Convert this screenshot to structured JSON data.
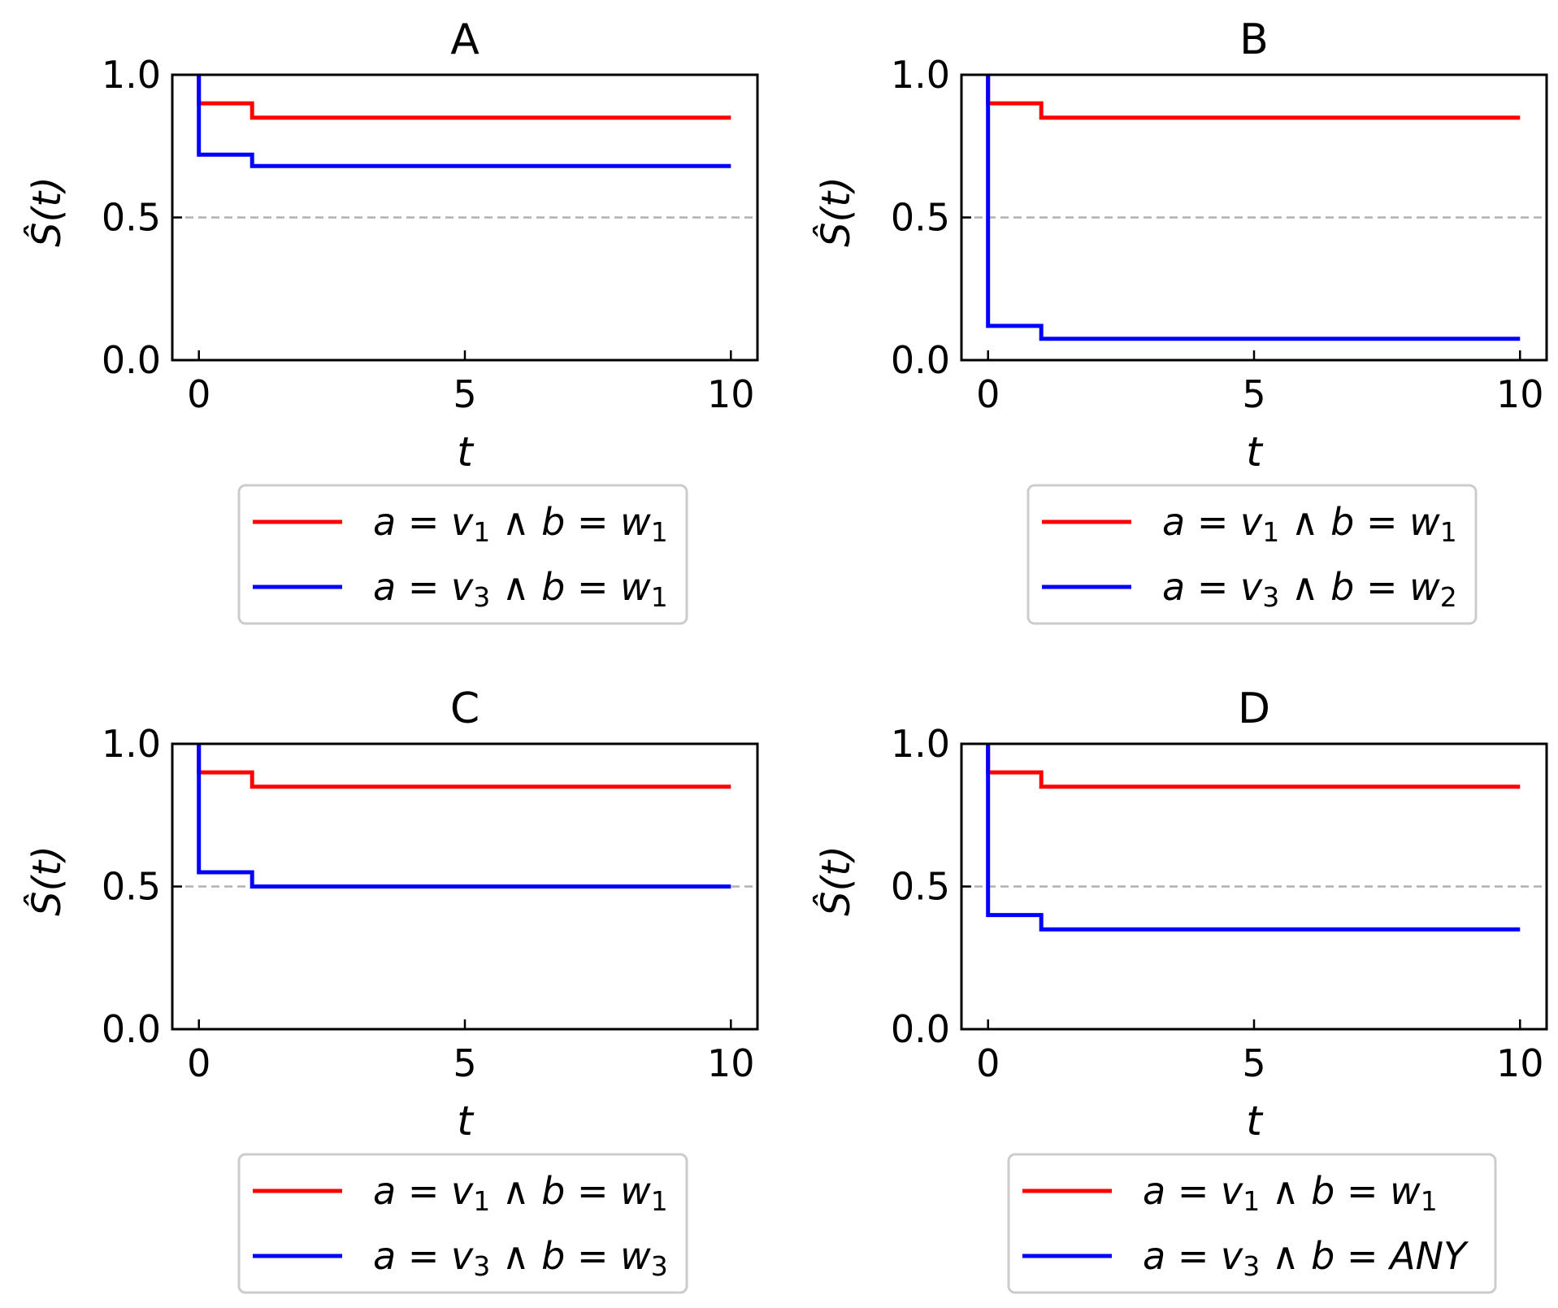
{
  "figure": {
    "xlabel": "t",
    "ylabel": "Ŝ(t)",
    "xticks": [
      "0",
      "5",
      "10"
    ],
    "yticks": [
      "0.0",
      "0.5",
      "1.0"
    ]
  },
  "chart_data": [
    {
      "type": "line",
      "step": true,
      "title": "A",
      "xlabel": "t",
      "ylabel": "Ŝ(t)",
      "xlim": [
        -0.5,
        10.5
      ],
      "ylim": [
        0,
        1
      ],
      "reference_line": {
        "y": 0.5,
        "style": "dashed",
        "color": "#b0b0b0"
      },
      "legend_position": "below",
      "series": [
        {
          "name": "a = v1 ∧ b = w1",
          "color": "#ff0000",
          "legend": {
            "a": "a",
            "var1": "v",
            "sub1": "1",
            "b": "b",
            "var2": "w",
            "sub2": "1"
          },
          "x": [
            0,
            0,
            1,
            1,
            10
          ],
          "y": [
            1.0,
            0.9,
            0.9,
            0.85,
            0.85
          ]
        },
        {
          "name": "a = v3 ∧ b = w1",
          "color": "#0000ff",
          "legend": {
            "a": "a",
            "var1": "v",
            "sub1": "3",
            "b": "b",
            "var2": "w",
            "sub2": "1"
          },
          "x": [
            0,
            0,
            1,
            1,
            10
          ],
          "y": [
            1.0,
            0.72,
            0.72,
            0.68,
            0.68
          ]
        }
      ]
    },
    {
      "type": "line",
      "step": true,
      "title": "B",
      "xlabel": "t",
      "ylabel": "Ŝ(t)",
      "xlim": [
        -0.5,
        10.5
      ],
      "ylim": [
        0,
        1
      ],
      "reference_line": {
        "y": 0.5,
        "style": "dashed",
        "color": "#b0b0b0"
      },
      "legend_position": "below",
      "series": [
        {
          "name": "a = v1 ∧ b = w1",
          "color": "#ff0000",
          "legend": {
            "a": "a",
            "var1": "v",
            "sub1": "1",
            "b": "b",
            "var2": "w",
            "sub2": "1"
          },
          "x": [
            0,
            0,
            1,
            1,
            10
          ],
          "y": [
            1.0,
            0.9,
            0.9,
            0.85,
            0.85
          ]
        },
        {
          "name": "a = v3 ∧ b = w2",
          "color": "#0000ff",
          "legend": {
            "a": "a",
            "var1": "v",
            "sub1": "3",
            "b": "b",
            "var2": "w",
            "sub2": "2"
          },
          "x": [
            0,
            0,
            1,
            1,
            10
          ],
          "y": [
            1.0,
            0.12,
            0.12,
            0.075,
            0.075
          ]
        }
      ]
    },
    {
      "type": "line",
      "step": true,
      "title": "C",
      "xlabel": "t",
      "ylabel": "Ŝ(t)",
      "xlim": [
        -0.5,
        10.5
      ],
      "ylim": [
        0,
        1
      ],
      "reference_line": {
        "y": 0.5,
        "style": "dashed",
        "color": "#b0b0b0"
      },
      "legend_position": "below",
      "series": [
        {
          "name": "a = v1 ∧ b = w1",
          "color": "#ff0000",
          "legend": {
            "a": "a",
            "var1": "v",
            "sub1": "1",
            "b": "b",
            "var2": "w",
            "sub2": "1"
          },
          "x": [
            0,
            0,
            1,
            1,
            10
          ],
          "y": [
            1.0,
            0.9,
            0.9,
            0.85,
            0.85
          ]
        },
        {
          "name": "a = v3 ∧ b = w3",
          "color": "#0000ff",
          "legend": {
            "a": "a",
            "var1": "v",
            "sub1": "3",
            "b": "b",
            "var2": "w",
            "sub2": "3"
          },
          "x": [
            0,
            0,
            1,
            1,
            10
          ],
          "y": [
            1.0,
            0.55,
            0.55,
            0.5,
            0.5
          ]
        }
      ]
    },
    {
      "type": "line",
      "step": true,
      "title": "D",
      "xlabel": "t",
      "ylabel": "Ŝ(t)",
      "xlim": [
        -0.5,
        10.5
      ],
      "ylim": [
        0,
        1
      ],
      "reference_line": {
        "y": 0.5,
        "style": "dashed",
        "color": "#b0b0b0"
      },
      "legend_position": "below",
      "series": [
        {
          "name": "a = v1 ∧ b = w1",
          "color": "#ff0000",
          "legend": {
            "a": "a",
            "var1": "v",
            "sub1": "1",
            "b": "b",
            "var2": "w",
            "sub2": "1"
          },
          "x": [
            0,
            0,
            1,
            1,
            10
          ],
          "y": [
            1.0,
            0.9,
            0.9,
            0.85,
            0.85
          ]
        },
        {
          "name": "a = v3 ∧ b = ANY",
          "color": "#0000ff",
          "legend": {
            "a": "a",
            "var1": "v",
            "sub1": "3",
            "b": "b",
            "var2": "ANY",
            "sub2": ""
          },
          "x": [
            0,
            0,
            1,
            1,
            10
          ],
          "y": [
            1.0,
            0.4,
            0.4,
            0.35,
            0.35
          ]
        }
      ]
    }
  ]
}
